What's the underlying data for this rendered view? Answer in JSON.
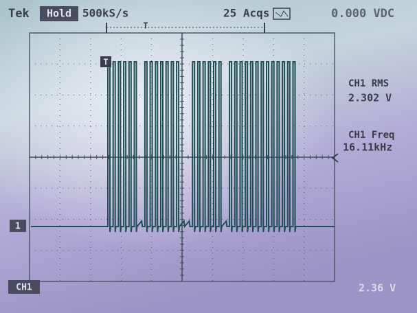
{
  "header": {
    "brand": "Tek",
    "mode": "Hold",
    "sample_rate": "500kS/s",
    "acquisitions": "25 Acqs",
    "readout": "0.000 VDC"
  },
  "trigger_marker": "T",
  "measurements": [
    {
      "label": "CH1 RMS",
      "value": "2.302 V"
    },
    {
      "label": "CH1 Freq",
      "value": "16.11kHz"
    }
  ],
  "channel_marker": "1",
  "footer": {
    "channel": "CH1",
    "scale": "2.36 V"
  }
}
